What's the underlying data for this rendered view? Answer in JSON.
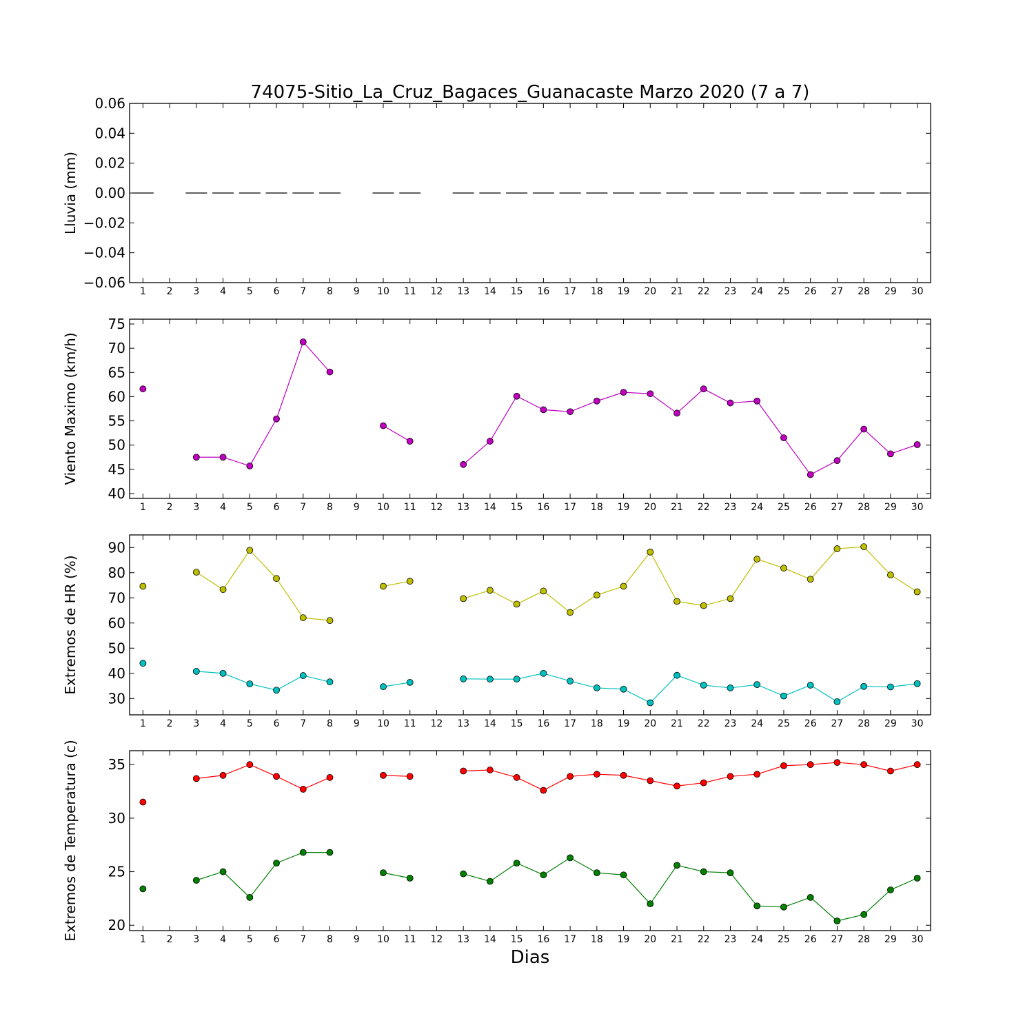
{
  "figure": {
    "title": "74075-Sitio_La_Cruz_Bagaces_Guanacaste Marzo 2020  (7 a 7)",
    "xlabel": "Dias"
  },
  "chart_data": [
    {
      "type": "bar",
      "ylabel": "Lluvia (mm)",
      "ylim": [
        -0.06,
        0.06
      ],
      "yticks": [
        -0.06,
        -0.04,
        -0.02,
        0.0,
        0.02,
        0.04,
        0.06
      ],
      "ytick_labels": [
        "−0.06",
        "−0.04",
        "−0.02",
        "0.00",
        "0.02",
        "0.04",
        "0.06"
      ],
      "xlim": [
        0.5,
        30.5
      ],
      "xticks": [
        1,
        2,
        3,
        4,
        5,
        6,
        7,
        8,
        9,
        10,
        11,
        12,
        13,
        14,
        15,
        16,
        17,
        18,
        19,
        20,
        21,
        22,
        23,
        24,
        25,
        26,
        27,
        28,
        29,
        30
      ],
      "grid": false,
      "series": [
        {
          "color": "#000000",
          "values": [
            0,
            null,
            0,
            0,
            0,
            0,
            0,
            0,
            null,
            0,
            0,
            null,
            0,
            0,
            0,
            0,
            0,
            0,
            0,
            0,
            0,
            0,
            0,
            0,
            0,
            0,
            0,
            0,
            0,
            0
          ]
        }
      ]
    },
    {
      "type": "line",
      "ylabel": "Viento Maximo (km/h)",
      "ylim": [
        39,
        76
      ],
      "yticks": [
        40,
        45,
        50,
        55,
        60,
        65,
        70,
        75
      ],
      "ytick_labels": [
        "40",
        "45",
        "50",
        "55",
        "60",
        "65",
        "70",
        "75"
      ],
      "xlim": [
        0.5,
        30.5
      ],
      "xticks": [
        1,
        2,
        3,
        4,
        5,
        6,
        7,
        8,
        9,
        10,
        11,
        12,
        13,
        14,
        15,
        16,
        17,
        18,
        19,
        20,
        21,
        22,
        23,
        24,
        25,
        26,
        27,
        28,
        29,
        30
      ],
      "grid": false,
      "series": [
        {
          "color": "#bf00bf",
          "values": [
            61.6,
            null,
            47.5,
            47.5,
            45.7,
            55.4,
            71.3,
            65.1,
            null,
            54.0,
            50.8,
            null,
            46.0,
            50.8,
            60.1,
            57.3,
            56.9,
            59.1,
            60.9,
            60.6,
            56.6,
            61.6,
            58.7,
            59.1,
            51.5,
            43.9,
            46.8,
            53.3,
            48.2,
            50.1
          ]
        }
      ]
    },
    {
      "type": "line",
      "ylabel": "Extremos de HR (%)",
      "ylim": [
        23.5,
        95
      ],
      "yticks": [
        30,
        40,
        50,
        60,
        70,
        80,
        90
      ],
      "ytick_labels": [
        "30",
        "40",
        "50",
        "60",
        "70",
        "80",
        "90"
      ],
      "xlim": [
        0.5,
        30.5
      ],
      "xticks": [
        1,
        2,
        3,
        4,
        5,
        6,
        7,
        8,
        9,
        10,
        11,
        12,
        13,
        14,
        15,
        16,
        17,
        18,
        19,
        20,
        21,
        22,
        23,
        24,
        25,
        26,
        27,
        28,
        29,
        30
      ],
      "grid": false,
      "series": [
        {
          "color": "#bfbf00",
          "values": [
            74.6,
            null,
            80.2,
            73.3,
            88.9,
            77.7,
            62.1,
            61.0,
            null,
            74.6,
            76.6,
            null,
            69.7,
            73.0,
            67.5,
            72.7,
            64.2,
            71.1,
            74.6,
            88.2,
            68.6,
            66.9,
            69.7,
            85.4,
            81.8,
            77.4,
            89.5,
            90.3,
            79.1,
            72.4
          ]
        },
        {
          "color": "#00bfbf",
          "values": [
            44.0,
            null,
            40.8,
            40.0,
            35.8,
            33.3,
            39.1,
            36.6,
            null,
            34.7,
            36.4,
            null,
            37.8,
            37.7,
            37.7,
            40.0,
            36.9,
            34.2,
            33.7,
            28.3,
            39.2,
            35.3,
            34.2,
            35.5,
            31.0,
            35.3,
            28.7,
            34.8,
            34.6,
            35.9
          ]
        }
      ]
    },
    {
      "type": "line",
      "ylabel": "Extremos de Temperatura (c)",
      "ylim": [
        19.5,
        36.3
      ],
      "yticks": [
        20,
        25,
        30,
        35
      ],
      "ytick_labels": [
        "20",
        "25",
        "30",
        "35"
      ],
      "xlim": [
        0.5,
        30.5
      ],
      "xticks": [
        1,
        2,
        3,
        4,
        5,
        6,
        7,
        8,
        9,
        10,
        11,
        12,
        13,
        14,
        15,
        16,
        17,
        18,
        19,
        20,
        21,
        22,
        23,
        24,
        25,
        26,
        27,
        28,
        29,
        30
      ],
      "grid": false,
      "series": [
        {
          "color": "#ff0000",
          "values": [
            31.5,
            null,
            33.7,
            34.0,
            35.0,
            33.9,
            32.7,
            33.8,
            null,
            34.0,
            33.9,
            null,
            34.4,
            34.5,
            33.8,
            32.6,
            33.9,
            34.1,
            34.0,
            33.5,
            33.0,
            33.3,
            33.9,
            34.1,
            34.9,
            35.0,
            35.2,
            35.0,
            34.4,
            35.0
          ]
        },
        {
          "color": "#007f00",
          "values": [
            23.4,
            null,
            24.2,
            25.0,
            22.6,
            25.8,
            26.8,
            26.8,
            null,
            24.9,
            24.4,
            null,
            24.8,
            24.1,
            25.8,
            24.7,
            26.3,
            24.9,
            24.7,
            22.0,
            25.6,
            25.0,
            24.9,
            21.8,
            21.7,
            22.6,
            20.4,
            21.0,
            23.3,
            24.4
          ]
        }
      ]
    }
  ]
}
